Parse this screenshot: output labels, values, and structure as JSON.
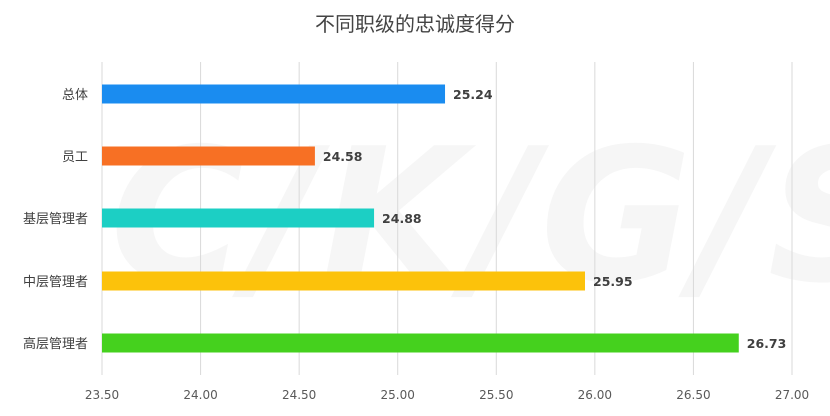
{
  "chart_data": {
    "type": "bar",
    "orientation": "horizontal",
    "title": "不同职级的忠诚度得分",
    "categories": [
      "总体",
      "员工",
      "基层管理者",
      "中层管理者",
      "高层管理者"
    ],
    "values": [
      25.24,
      24.58,
      24.88,
      25.95,
      26.73
    ],
    "value_labels": [
      "25.24",
      "24.58",
      "24.88",
      "25.95",
      "26.73"
    ],
    "bar_colors": [
      "#1a8cf0",
      "#f77024",
      "#1ccfc4",
      "#fcc20b",
      "#45d11e"
    ],
    "xlim": [
      23.5,
      27.0
    ],
    "x_ticks": [
      "23.50",
      "24.00",
      "24.50",
      "25.00",
      "25.50",
      "26.00",
      "26.50",
      "27.00"
    ],
    "grid": "vertical",
    "legend": "none",
    "xlabel": "",
    "ylabel": ""
  },
  "watermark": {
    "text": "C/K/G/S/B"
  }
}
